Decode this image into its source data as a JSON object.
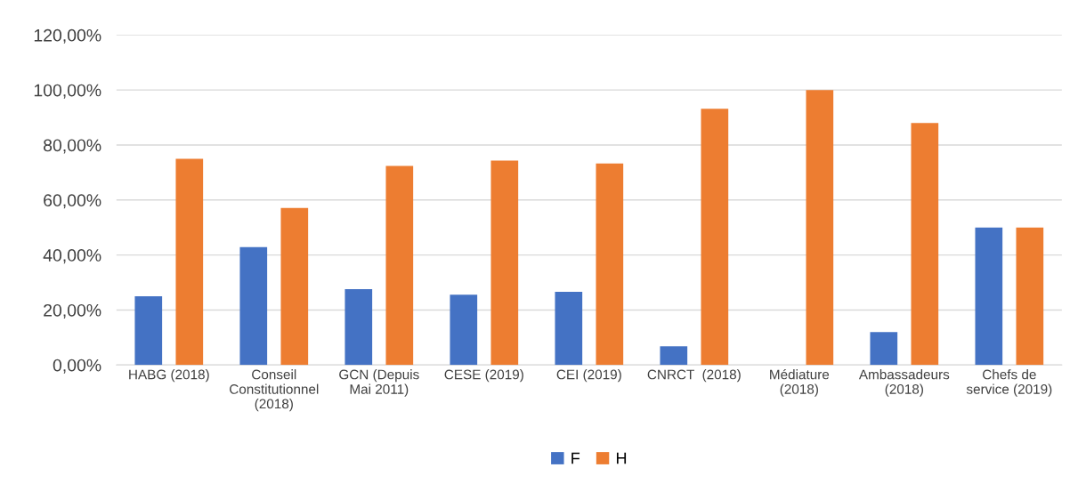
{
  "chart_data": {
    "type": "bar",
    "categories": [
      "HABG (2018)",
      "Conseil\nConstitutionnel\n(2018)",
      "GCN (Depuis\nMai 2011)",
      "CESE (2019)",
      "CEI (2019)",
      "CNRCT  (2018)",
      "Médiature\n(2018)",
      "Ambassadeurs\n(2018)",
      "Chefs de\nservice (2019)"
    ],
    "series": [
      {
        "name": "F",
        "color": "#4472c4",
        "values": [
          25.0,
          42.9,
          27.6,
          25.6,
          26.6,
          6.8,
          0,
          12.0,
          50.0
        ]
      },
      {
        "name": "H",
        "color": "#ed7d31",
        "values": [
          75.0,
          57.1,
          72.4,
          74.3,
          73.3,
          93.2,
          100.0,
          88.0,
          50.0
        ]
      }
    ],
    "ylim": [
      0,
      120
    ],
    "yticks": [
      {
        "value": 0,
        "label": "0,00%"
      },
      {
        "value": 20,
        "label": "20,00%"
      },
      {
        "value": 40,
        "label": "40,00%"
      },
      {
        "value": 60,
        "label": "60,00%"
      },
      {
        "value": 80,
        "label": "80,00%"
      },
      {
        "value": 100,
        "label": "100,00%"
      },
      {
        "value": 120,
        "label": "120,00%"
      }
    ],
    "grid": "y",
    "legend": "bottom"
  }
}
